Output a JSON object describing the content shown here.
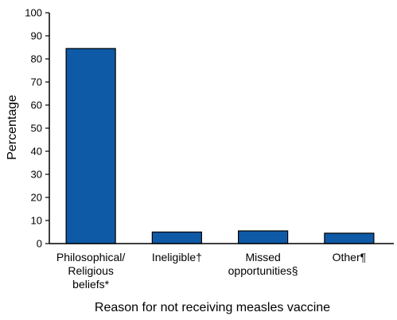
{
  "chart_data": {
    "type": "bar",
    "categories": [
      [
        "Philosophical/",
        "Religious",
        "beliefs*"
      ],
      [
        "Ineligible†"
      ],
      [
        "Missed",
        "opportunities§"
      ],
      [
        "Other¶"
      ]
    ],
    "values": [
      84.5,
      5,
      5.5,
      4.5
    ],
    "title": "",
    "xlabel": "Reason for not receiving measles vaccine",
    "ylabel": "Percentage",
    "ylim": [
      0,
      100
    ],
    "yticks": [
      0,
      10,
      20,
      30,
      40,
      50,
      60,
      70,
      80,
      90,
      100
    ],
    "grid": false,
    "legend": "none",
    "colors": {
      "bar_fill": "#0f5aa6",
      "bar_stroke": "#000000",
      "axis": "#000000"
    }
  }
}
